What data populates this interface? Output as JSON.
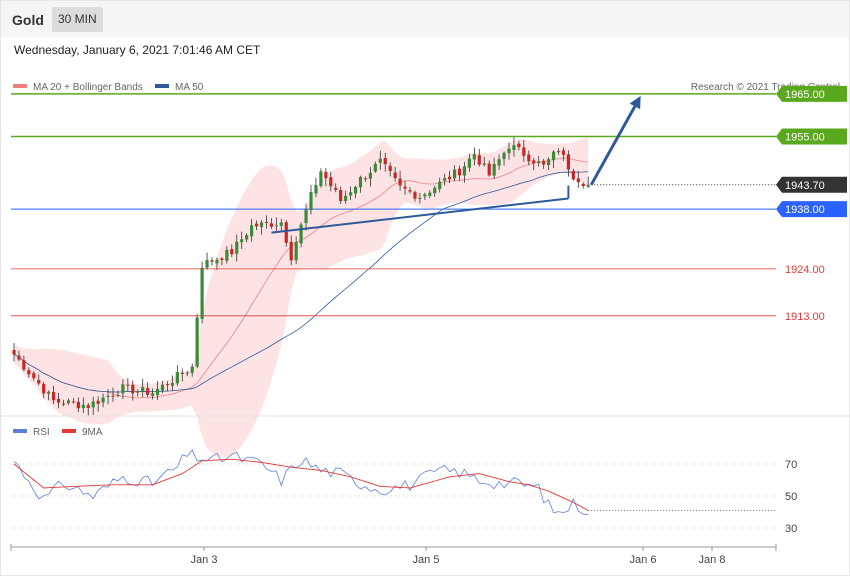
{
  "header": {
    "asset": "Gold",
    "timeframe": "30 MIN",
    "datetime": "Wednesday, January 6, 2021 7:01:46 AM CET"
  },
  "legend": {
    "ma20": "MA 20 + Bollinger Bands",
    "ma50": "MA 50",
    "credit": "Research © 2021 Trading Central",
    "rsi": "RSI",
    "rsi_ma": "9MA"
  },
  "colors": {
    "ma20": "#f08080",
    "ma50": "#2e5a9c",
    "band_fill": "#fde0e0",
    "candle_up": "#3a8a3a",
    "candle_down": "#c62828",
    "resistance": "#5aa81e",
    "current": "#333333",
    "pivot": "#2962ff",
    "support": "#e53935",
    "rsi": "#5b7fdb",
    "rsi_ma": "#e53935",
    "arrow": "#2e5a9c"
  },
  "chart_data": [
    {
      "type": "candlestick",
      "x_tick_labels": [
        "Jan 3",
        "Jan 5",
        "Jan 6",
        "Jan 8"
      ],
      "ylim": [
        1890,
        1972
      ],
      "levels": [
        {
          "value": 1965.0,
          "label": "1965.00",
          "kind": "resistance"
        },
        {
          "value": 1955.0,
          "label": "1955.00",
          "kind": "resistance"
        },
        {
          "value": 1943.7,
          "label": "1943.70",
          "kind": "current"
        },
        {
          "value": 1938.0,
          "label": "1938.00",
          "kind": "pivot"
        },
        {
          "value": 1924.0,
          "label": "1924.00",
          "kind": "support"
        },
        {
          "value": 1913.0,
          "label": "1913.00",
          "kind": "support"
        }
      ],
      "price_path": [
        [
          0,
          1904
        ],
        [
          8,
          1893
        ],
        [
          15,
          1892
        ],
        [
          22,
          1896
        ],
        [
          28,
          1895
        ],
        [
          36,
          1901
        ],
        [
          38,
          1925
        ],
        [
          44,
          1928
        ],
        [
          48,
          1934
        ],
        [
          54,
          1935
        ],
        [
          56,
          1927
        ],
        [
          60,
          1941
        ],
        [
          62,
          1947
        ],
        [
          66,
          1940
        ],
        [
          70,
          1945
        ],
        [
          74,
          1949
        ],
        [
          78,
          1943
        ],
        [
          82,
          1941
        ],
        [
          86,
          1944
        ],
        [
          90,
          1947
        ],
        [
          93,
          1951
        ],
        [
          96,
          1946
        ],
        [
          100,
          1953
        ],
        [
          103,
          1951
        ],
        [
          107,
          1948
        ],
        [
          110,
          1952
        ],
        [
          113,
          1946
        ],
        [
          116,
          1943.7
        ]
      ],
      "trendline": [
        [
          52,
          1932.5
        ],
        [
          112,
          1940.5
        ]
      ],
      "target_arrow": [
        [
          116,
          1943.7
        ],
        [
          126,
          1965
        ]
      ]
    },
    {
      "type": "line",
      "name": "RSI",
      "y_tick_labels": [
        "70",
        "50",
        "30"
      ],
      "ylim": [
        20,
        85
      ],
      "rsi_path": [
        [
          0,
          72
        ],
        [
          6,
          48
        ],
        [
          10,
          58
        ],
        [
          16,
          50
        ],
        [
          22,
          62
        ],
        [
          28,
          58
        ],
        [
          33,
          68
        ],
        [
          35,
          76
        ],
        [
          40,
          72
        ],
        [
          44,
          75
        ],
        [
          50,
          70
        ],
        [
          54,
          60
        ],
        [
          58,
          73
        ],
        [
          62,
          66
        ],
        [
          66,
          64
        ],
        [
          70,
          58
        ],
        [
          74,
          54
        ],
        [
          80,
          57
        ],
        [
          86,
          66
        ],
        [
          90,
          65
        ],
        [
          94,
          60
        ],
        [
          98,
          58
        ],
        [
          102,
          58
        ],
        [
          106,
          55
        ],
        [
          108,
          44
        ],
        [
          110,
          39
        ],
        [
          113,
          45
        ],
        [
          116,
          41
        ]
      ],
      "rsi_ma_path": [
        [
          0,
          70
        ],
        [
          6,
          55
        ],
        [
          12,
          56
        ],
        [
          20,
          57
        ],
        [
          28,
          57
        ],
        [
          34,
          64
        ],
        [
          38,
          72
        ],
        [
          44,
          73
        ],
        [
          50,
          71
        ],
        [
          56,
          68
        ],
        [
          62,
          66
        ],
        [
          68,
          62
        ],
        [
          74,
          56
        ],
        [
          80,
          55
        ],
        [
          88,
          62
        ],
        [
          94,
          64
        ],
        [
          100,
          59
        ],
        [
          104,
          57
        ],
        [
          108,
          53
        ],
        [
          113,
          46
        ],
        [
          116,
          41
        ]
      ]
    }
  ]
}
